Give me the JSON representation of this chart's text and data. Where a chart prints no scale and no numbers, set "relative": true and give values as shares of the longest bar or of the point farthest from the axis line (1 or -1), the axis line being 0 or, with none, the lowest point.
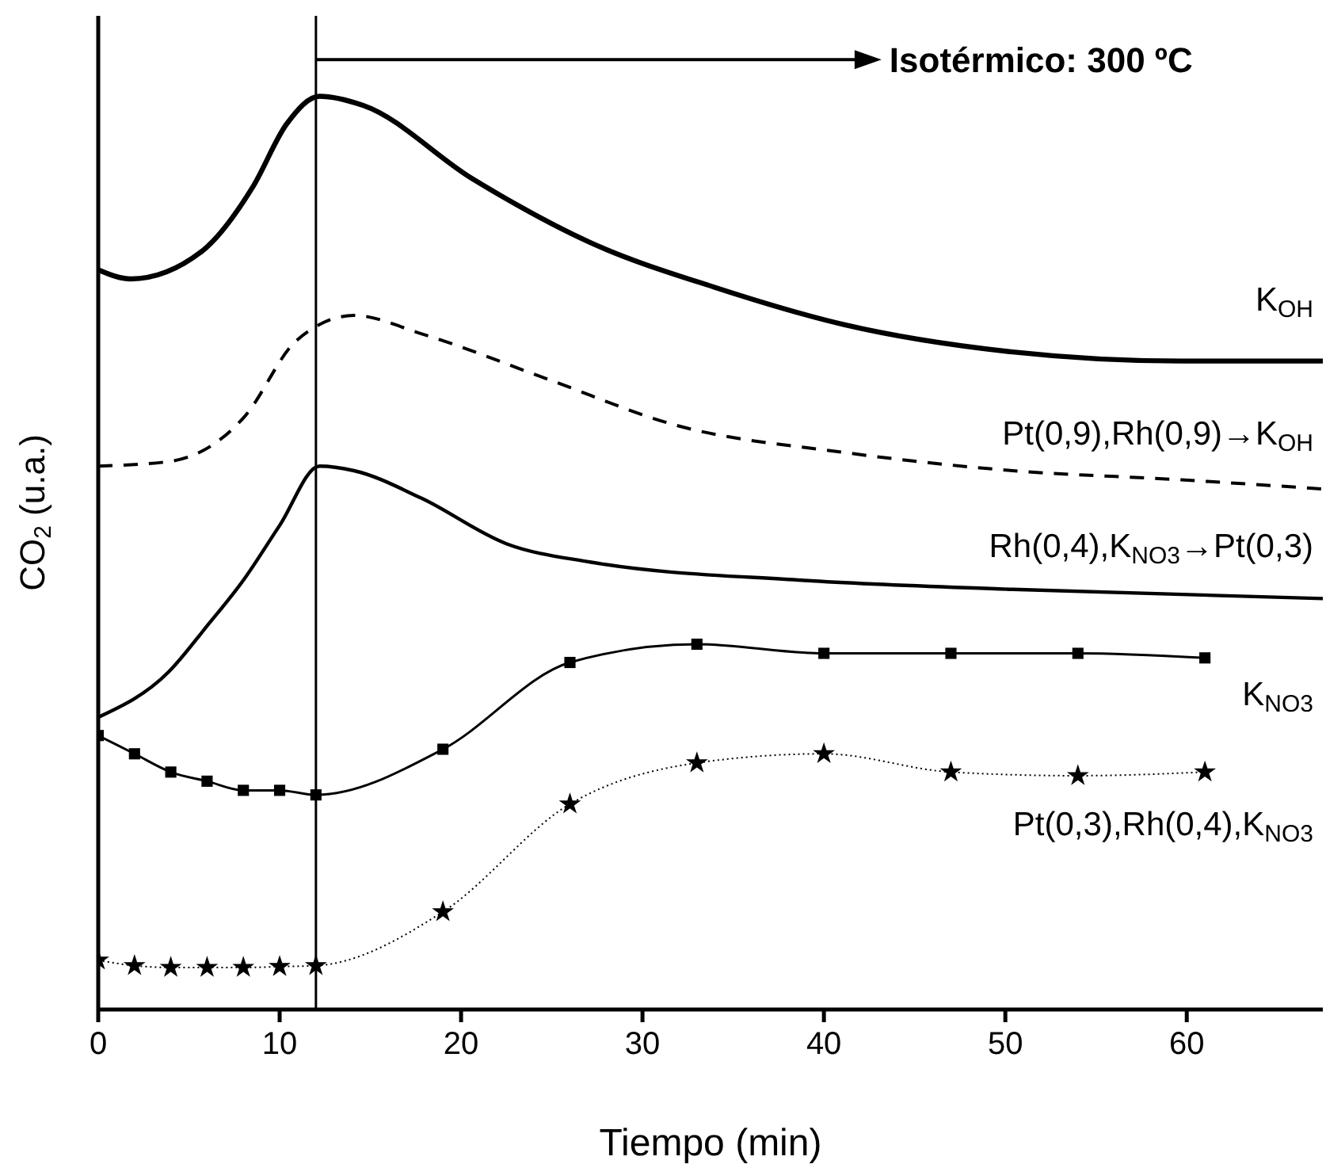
{
  "chart_data": {
    "type": "line",
    "relative": true,
    "xlabel": "Tiempo (min)",
    "ylabel": "CO$_{2}$ (u.a.)",
    "xlim": [
      0,
      67.5
    ],
    "xticks": [
      0,
      10,
      20,
      30,
      40,
      50,
      60
    ],
    "annotations": [
      "Isotérmico: 300 ºC"
    ],
    "ref_lines": [
      {
        "axis": "x",
        "value": 12,
        "color": "#000000",
        "line_style": "solid"
      }
    ],
    "series": [
      {
        "name": "K$_{OH}$",
        "color": "#000000",
        "line_style": "solid",
        "marker": "none",
        "x": [
          0,
          1.8,
          5.7,
          8.5,
          10.4,
          12.2,
          14.6,
          20.6,
          27.1,
          34.1,
          41.1,
          50.4,
          59.7,
          67.5
        ],
        "values": [
          0.81,
          0.8,
          0.83,
          0.9,
          0.97,
          1,
          0.99,
          0.91,
          0.84,
          0.79,
          0.75,
          0.72,
          0.71,
          0.71
        ]
      },
      {
        "name": "Pt(0,9),Rh(0,9)→K$_{OH}$",
        "color": "#000000",
        "line_style": "dashed",
        "marker": "none",
        "x": [
          0,
          3.9,
          8.1,
          10.8,
          12.2,
          14.1,
          17.8,
          24.8,
          31.8,
          41.1,
          50.4,
          59.7,
          67.5
        ],
        "values": [
          0.595,
          0.6,
          0.65,
          0.73,
          0.75,
          0.76,
          0.74,
          0.69,
          0.64,
          0.61,
          0.59,
          0.58,
          0.57
        ]
      },
      {
        "name": "Rh(0,4),K$_{NO3}$→Pt(0,3)",
        "color": "#000000",
        "line_style": "solid",
        "marker": "none",
        "x": [
          0,
          3.9,
          6,
          8,
          10,
          12.2,
          14.1,
          17.8,
          22.5,
          27.1,
          38.8,
          50.4,
          67.5
        ],
        "values": [
          0.32,
          0.37,
          0.42,
          0.47,
          0.53,
          0.595,
          0.59,
          0.56,
          0.51,
          0.49,
          0.47,
          0.46,
          0.45
        ]
      },
      {
        "name": "K$_{NO3}$",
        "color": "#000000",
        "line_style": "solid",
        "marker": "square",
        "x": [
          0,
          2,
          4,
          6,
          8,
          10,
          12,
          19,
          26,
          33,
          40,
          47,
          54,
          61
        ],
        "values": [
          0.3,
          0.28,
          0.26,
          0.25,
          0.24,
          0.24,
          0.235,
          0.285,
          0.38,
          0.4,
          0.39,
          0.39,
          0.39,
          0.385
        ]
      },
      {
        "name": "Pt(0,3),Rh(0,4),K$_{NO3}$",
        "color": "#000000",
        "line_style": "dotted",
        "marker": "star",
        "x": [
          0,
          2,
          4,
          6,
          8,
          10,
          12,
          19,
          26,
          33,
          40,
          47,
          54,
          61
        ],
        "values": [
          0.054,
          0.048,
          0.046,
          0.046,
          0.046,
          0.047,
          0.048,
          0.107,
          0.225,
          0.27,
          0.28,
          0.26,
          0.256,
          0.26
        ]
      }
    ]
  }
}
